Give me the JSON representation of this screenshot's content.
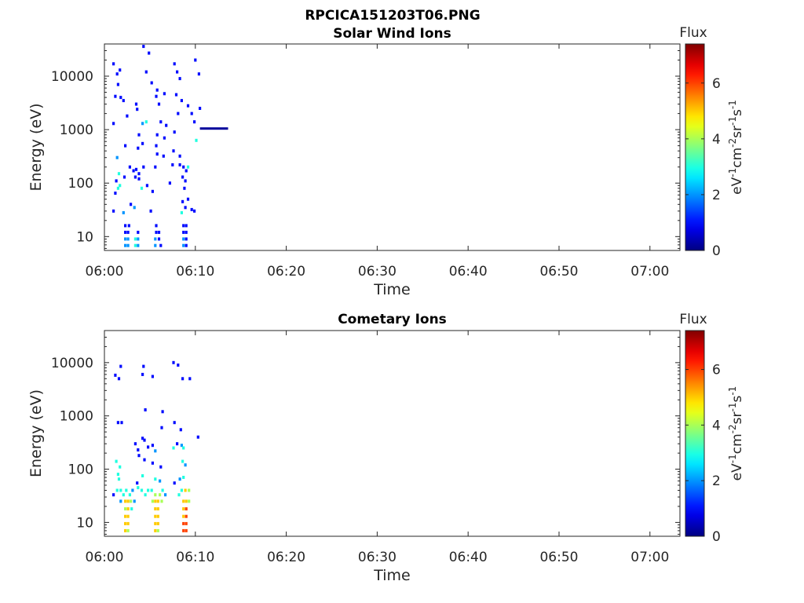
{
  "figure_title": "RPCICA151203T06.PNG",
  "chart_data": [
    {
      "type": "heatmap",
      "title": "Solar Wind Ions",
      "xlabel": "Time",
      "ylabel": "Energy (eV)",
      "x_ticks": [
        "06:00",
        "06:10",
        "06:20",
        "06:30",
        "06:40",
        "06:50",
        "07:00"
      ],
      "x_range_minutes": [
        0,
        63.3
      ],
      "y_scale": "log",
      "y_ticks": [
        "10",
        "100",
        "1000",
        "10000"
      ],
      "y_range": [
        5.5,
        40000
      ],
      "colorbar": {
        "title": "Flux",
        "label": "eV-1cm-2sr-1s-1",
        "ticks": [
          "0",
          "2",
          "4",
          "6"
        ],
        "range": [
          0,
          7.4
        ],
        "colormap": "jet"
      },
      "cells": [
        [
          1.0,
          17000,
          1
        ],
        [
          1.4,
          11000,
          1
        ],
        [
          1.7,
          13000,
          1
        ],
        [
          1.5,
          7000,
          1
        ],
        [
          1.2,
          4200,
          1
        ],
        [
          2.1,
          3500,
          1
        ],
        [
          1.0,
          1300,
          1
        ],
        [
          1.8,
          4000,
          1
        ],
        [
          2.5,
          1800,
          1
        ],
        [
          3.5,
          3000,
          1
        ],
        [
          3.6,
          2400,
          1
        ],
        [
          4.3,
          36000,
          1
        ],
        [
          4.9,
          27000,
          1
        ],
        [
          4.6,
          12000,
          1
        ],
        [
          5.2,
          7500,
          1
        ],
        [
          5.7,
          4200,
          1
        ],
        [
          6.0,
          3000,
          1
        ],
        [
          5.8,
          5500,
          1
        ],
        [
          6.6,
          4700,
          1
        ],
        [
          7.7,
          17000,
          1
        ],
        [
          8.0,
          12000,
          1
        ],
        [
          8.3,
          9000,
          1
        ],
        [
          7.9,
          4500,
          1
        ],
        [
          8.5,
          3500,
          1
        ],
        [
          8.1,
          2000,
          1
        ],
        [
          9.2,
          2800,
          1
        ],
        [
          9.6,
          2000,
          1
        ],
        [
          10.0,
          20000,
          1
        ],
        [
          10.4,
          11000,
          1
        ],
        [
          10.5,
          2500,
          1
        ],
        [
          9.9,
          1400,
          1
        ],
        [
          10.1,
          630,
          3
        ],
        [
          4.2,
          1300,
          2
        ],
        [
          4.6,
          1400,
          3
        ],
        [
          3.8,
          800,
          1
        ],
        [
          4.2,
          550,
          1
        ],
        [
          6.2,
          1400,
          1
        ],
        [
          6.8,
          1200,
          1
        ],
        [
          5.8,
          800,
          1
        ],
        [
          6.6,
          700,
          1
        ],
        [
          7.7,
          900,
          1
        ],
        [
          5.7,
          500,
          1
        ],
        [
          7.6,
          400,
          1
        ],
        [
          1.4,
          300,
          2
        ],
        [
          2.3,
          500,
          1
        ],
        [
          3.7,
          450,
          1
        ],
        [
          5.8,
          350,
          1
        ],
        [
          6.5,
          320,
          1
        ],
        [
          8.3,
          320,
          1
        ],
        [
          1.6,
          150,
          3
        ],
        [
          2.8,
          200,
          1
        ],
        [
          3.2,
          170,
          1
        ],
        [
          3.5,
          180,
          1
        ],
        [
          3.8,
          150,
          1
        ],
        [
          4.3,
          200,
          1
        ],
        [
          5.6,
          200,
          1
        ],
        [
          7.5,
          220,
          1
        ],
        [
          8.3,
          220,
          1
        ],
        [
          8.7,
          200,
          1
        ],
        [
          9.2,
          200,
          3
        ],
        [
          9.0,
          170,
          1
        ],
        [
          1.3,
          110,
          1
        ],
        [
          2.2,
          130,
          1
        ],
        [
          3.4,
          130,
          1
        ],
        [
          3.8,
          120,
          1
        ],
        [
          8.6,
          130,
          1
        ],
        [
          8.9,
          110,
          1
        ],
        [
          1.5,
          80,
          3
        ],
        [
          1.7,
          90,
          3
        ],
        [
          1.2,
          65,
          1
        ],
        [
          4.1,
          80,
          3
        ],
        [
          4.7,
          90,
          1
        ],
        [
          7.2,
          100,
          1
        ],
        [
          5.3,
          70,
          1
        ],
        [
          8.8,
          80,
          1
        ],
        [
          1.0,
          30,
          1
        ],
        [
          2.1,
          28,
          2
        ],
        [
          2.9,
          40,
          1
        ],
        [
          3.3,
          35,
          2
        ],
        [
          5.1,
          30,
          1
        ],
        [
          8.6,
          45,
          1
        ],
        [
          8.9,
          35,
          1
        ],
        [
          9.2,
          50,
          1
        ],
        [
          9.6,
          32,
          1
        ],
        [
          9.9,
          30,
          1
        ],
        [
          8.5,
          28,
          3
        ],
        [
          2.3,
          16,
          1
        ],
        [
          2.7,
          16,
          1
        ],
        [
          5.7,
          16,
          1
        ],
        [
          8.7,
          16,
          1
        ],
        [
          9.0,
          16,
          1
        ],
        [
          2.3,
          12,
          1
        ],
        [
          2.6,
          12,
          1
        ],
        [
          3.7,
          12,
          1
        ],
        [
          5.7,
          12,
          1
        ],
        [
          6.0,
          12,
          1
        ],
        [
          8.7,
          12,
          1
        ],
        [
          9.0,
          12,
          1
        ],
        [
          2.3,
          9,
          2
        ],
        [
          2.6,
          9,
          2
        ],
        [
          3.4,
          9,
          3
        ],
        [
          3.7,
          9,
          2
        ],
        [
          5.6,
          9,
          2
        ],
        [
          6.0,
          9,
          1
        ],
        [
          8.7,
          9,
          2
        ],
        [
          9.0,
          9,
          1
        ],
        [
          2.3,
          6.8,
          2
        ],
        [
          2.6,
          6.8,
          2
        ],
        [
          3.4,
          6.8,
          3
        ],
        [
          3.7,
          6.8,
          2
        ],
        [
          5.6,
          6.8,
          2
        ],
        [
          6.2,
          6.8,
          1
        ],
        [
          8.7,
          6.8,
          2
        ],
        [
          9.0,
          6.8,
          1
        ]
      ],
      "segments": [
        {
          "x_start": 10.5,
          "x_end": 13.6,
          "y": 1050,
          "flux": 0.2
        }
      ]
    },
    {
      "type": "heatmap",
      "title": "Cometary Ions",
      "xlabel": "Time",
      "ylabel": "Energy (eV)",
      "x_ticks": [
        "06:00",
        "06:10",
        "06:20",
        "06:30",
        "06:40",
        "06:50",
        "07:00"
      ],
      "x_range_minutes": [
        0,
        63.3
      ],
      "y_scale": "log",
      "y_ticks": [
        "10",
        "100",
        "1000",
        "10000"
      ],
      "y_range": [
        5.5,
        40000
      ],
      "colorbar": {
        "title": "Flux",
        "label": "eV-1cm-2sr-1s-1",
        "ticks": [
          "0",
          "2",
          "4",
          "6"
        ],
        "range": [
          0,
          7.4
        ],
        "colormap": "jet"
      },
      "cells": [
        [
          1.2,
          5800,
          1
        ],
        [
          1.6,
          5000,
          1
        ],
        [
          1.8,
          8500,
          1
        ],
        [
          4.3,
          8500,
          1
        ],
        [
          4.2,
          6000,
          1
        ],
        [
          5.3,
          5500,
          1
        ],
        [
          7.6,
          10000,
          1
        ],
        [
          8.1,
          9000,
          1
        ],
        [
          8.6,
          5000,
          1
        ],
        [
          9.4,
          5000,
          1
        ],
        [
          1.5,
          750,
          1
        ],
        [
          1.9,
          750,
          1
        ],
        [
          4.5,
          1300,
          1
        ],
        [
          6.4,
          1200,
          1
        ],
        [
          7.7,
          750,
          1
        ],
        [
          8.4,
          550,
          1
        ],
        [
          10.3,
          400,
          1
        ],
        [
          4.2,
          380,
          1
        ],
        [
          6.3,
          600,
          1
        ],
        [
          3.4,
          300,
          1
        ],
        [
          3.7,
          230,
          1
        ],
        [
          4.4,
          350,
          1
        ],
        [
          4.8,
          260,
          1
        ],
        [
          5.3,
          280,
          1
        ],
        [
          5.6,
          220,
          2
        ],
        [
          8.0,
          300,
          1
        ],
        [
          8.5,
          280,
          2
        ],
        [
          8.7,
          250,
          3
        ],
        [
          7.6,
          250,
          3
        ],
        [
          1.3,
          140,
          3
        ],
        [
          1.7,
          110,
          3
        ],
        [
          3.8,
          180,
          1
        ],
        [
          4.4,
          150,
          1
        ],
        [
          5.3,
          130,
          1
        ],
        [
          6.2,
          110,
          1
        ],
        [
          8.6,
          140,
          3
        ],
        [
          8.9,
          120,
          2
        ],
        [
          1.5,
          80,
          3
        ],
        [
          1.6,
          65,
          3
        ],
        [
          4.2,
          75,
          3
        ],
        [
          5.6,
          65,
          3
        ],
        [
          6.1,
          60,
          2
        ],
        [
          8.7,
          70,
          3
        ],
        [
          8.3,
          65,
          2
        ],
        [
          3.6,
          55,
          1
        ],
        [
          7.7,
          55,
          1
        ],
        [
          1.0,
          33,
          1
        ],
        [
          1.4,
          40,
          3
        ],
        [
          1.8,
          40,
          3
        ],
        [
          2.1,
          33,
          3
        ],
        [
          2.4,
          40,
          3
        ],
        [
          2.8,
          33,
          3
        ],
        [
          3.1,
          40,
          2
        ],
        [
          3.7,
          45,
          3
        ],
        [
          4.1,
          40,
          3
        ],
        [
          4.5,
          33,
          3
        ],
        [
          4.8,
          40,
          3
        ],
        [
          5.2,
          40,
          3
        ],
        [
          5.6,
          33,
          4
        ],
        [
          6.1,
          33,
          4
        ],
        [
          6.4,
          40,
          3
        ],
        [
          6.7,
          33,
          2
        ],
        [
          8.2,
          33,
          3
        ],
        [
          8.5,
          40,
          3
        ],
        [
          8.9,
          40,
          5
        ],
        [
          9.3,
          40,
          4
        ],
        [
          2.3,
          25,
          5
        ],
        [
          2.6,
          25,
          5
        ],
        [
          2.9,
          25,
          4
        ],
        [
          5.3,
          25,
          4
        ],
        [
          5.6,
          25,
          5
        ],
        [
          5.9,
          25,
          5
        ],
        [
          6.3,
          25,
          4
        ],
        [
          8.7,
          25,
          5
        ],
        [
          9.0,
          25,
          5
        ],
        [
          9.3,
          25,
          4
        ],
        [
          3.3,
          25,
          2
        ],
        [
          1.8,
          25,
          2
        ],
        [
          2.3,
          18,
          4
        ],
        [
          2.6,
          18,
          5
        ],
        [
          5.6,
          18,
          5
        ],
        [
          5.9,
          18,
          5
        ],
        [
          8.7,
          18,
          5
        ],
        [
          9.0,
          18,
          6
        ],
        [
          3.0,
          18,
          3
        ],
        [
          2.3,
          13,
          5
        ],
        [
          2.6,
          13,
          5
        ],
        [
          5.6,
          13,
          5
        ],
        [
          5.9,
          13,
          5
        ],
        [
          8.7,
          13,
          5
        ],
        [
          9.0,
          13,
          6
        ],
        [
          2.3,
          9.5,
          5
        ],
        [
          2.6,
          9.5,
          5
        ],
        [
          5.6,
          9.5,
          5
        ],
        [
          5.9,
          9.5,
          5
        ],
        [
          8.7,
          9.5,
          6
        ],
        [
          9.0,
          9.5,
          6
        ],
        [
          2.3,
          7,
          5
        ],
        [
          2.6,
          7,
          4
        ],
        [
          5.6,
          7,
          5
        ],
        [
          5.9,
          7,
          4
        ],
        [
          8.7,
          7,
          6
        ],
        [
          9.0,
          7,
          6
        ]
      ],
      "segments": []
    }
  ]
}
